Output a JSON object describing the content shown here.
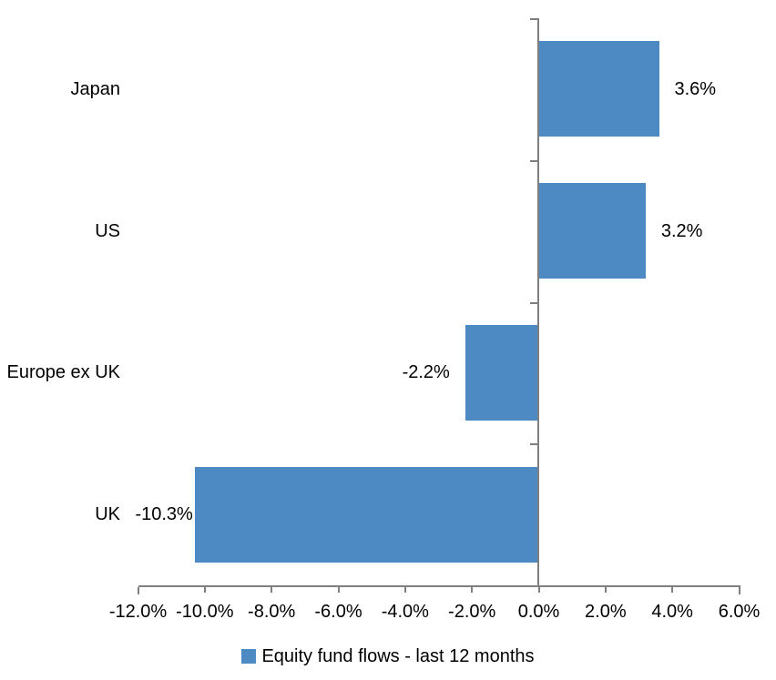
{
  "chart_data": {
    "type": "bar",
    "orientation": "horizontal",
    "categories": [
      "Japan",
      "US",
      "Europe ex UK",
      "UK"
    ],
    "values": [
      3.6,
      3.2,
      -2.2,
      -10.3
    ],
    "data_labels": [
      "3.6%",
      "3.2%",
      "-2.2%",
      "-10.3%"
    ],
    "series": [
      {
        "name": "Equity fund flows - last 12 months",
        "values": [
          3.6,
          3.2,
          -2.2,
          -10.3
        ]
      }
    ],
    "xlim": [
      -12,
      6
    ],
    "x_tick_step": 2,
    "x_tick_labels": [
      "-12.0%",
      "-10.0%",
      "-8.0%",
      "-6.0%",
      "-4.0%",
      "-2.0%",
      "0.0%",
      "2.0%",
      "4.0%",
      "6.0%"
    ],
    "grid": false,
    "legend": {
      "position": "bottom",
      "entries": [
        {
          "label": "Equity fund flows - last 12 months",
          "swatch_color": "#4D8AC3"
        }
      ]
    },
    "colors": {
      "bar": "#4D8AC3",
      "axis": "#7F7F7F",
      "text": "#000000",
      "background": "#FFFFFF"
    }
  }
}
